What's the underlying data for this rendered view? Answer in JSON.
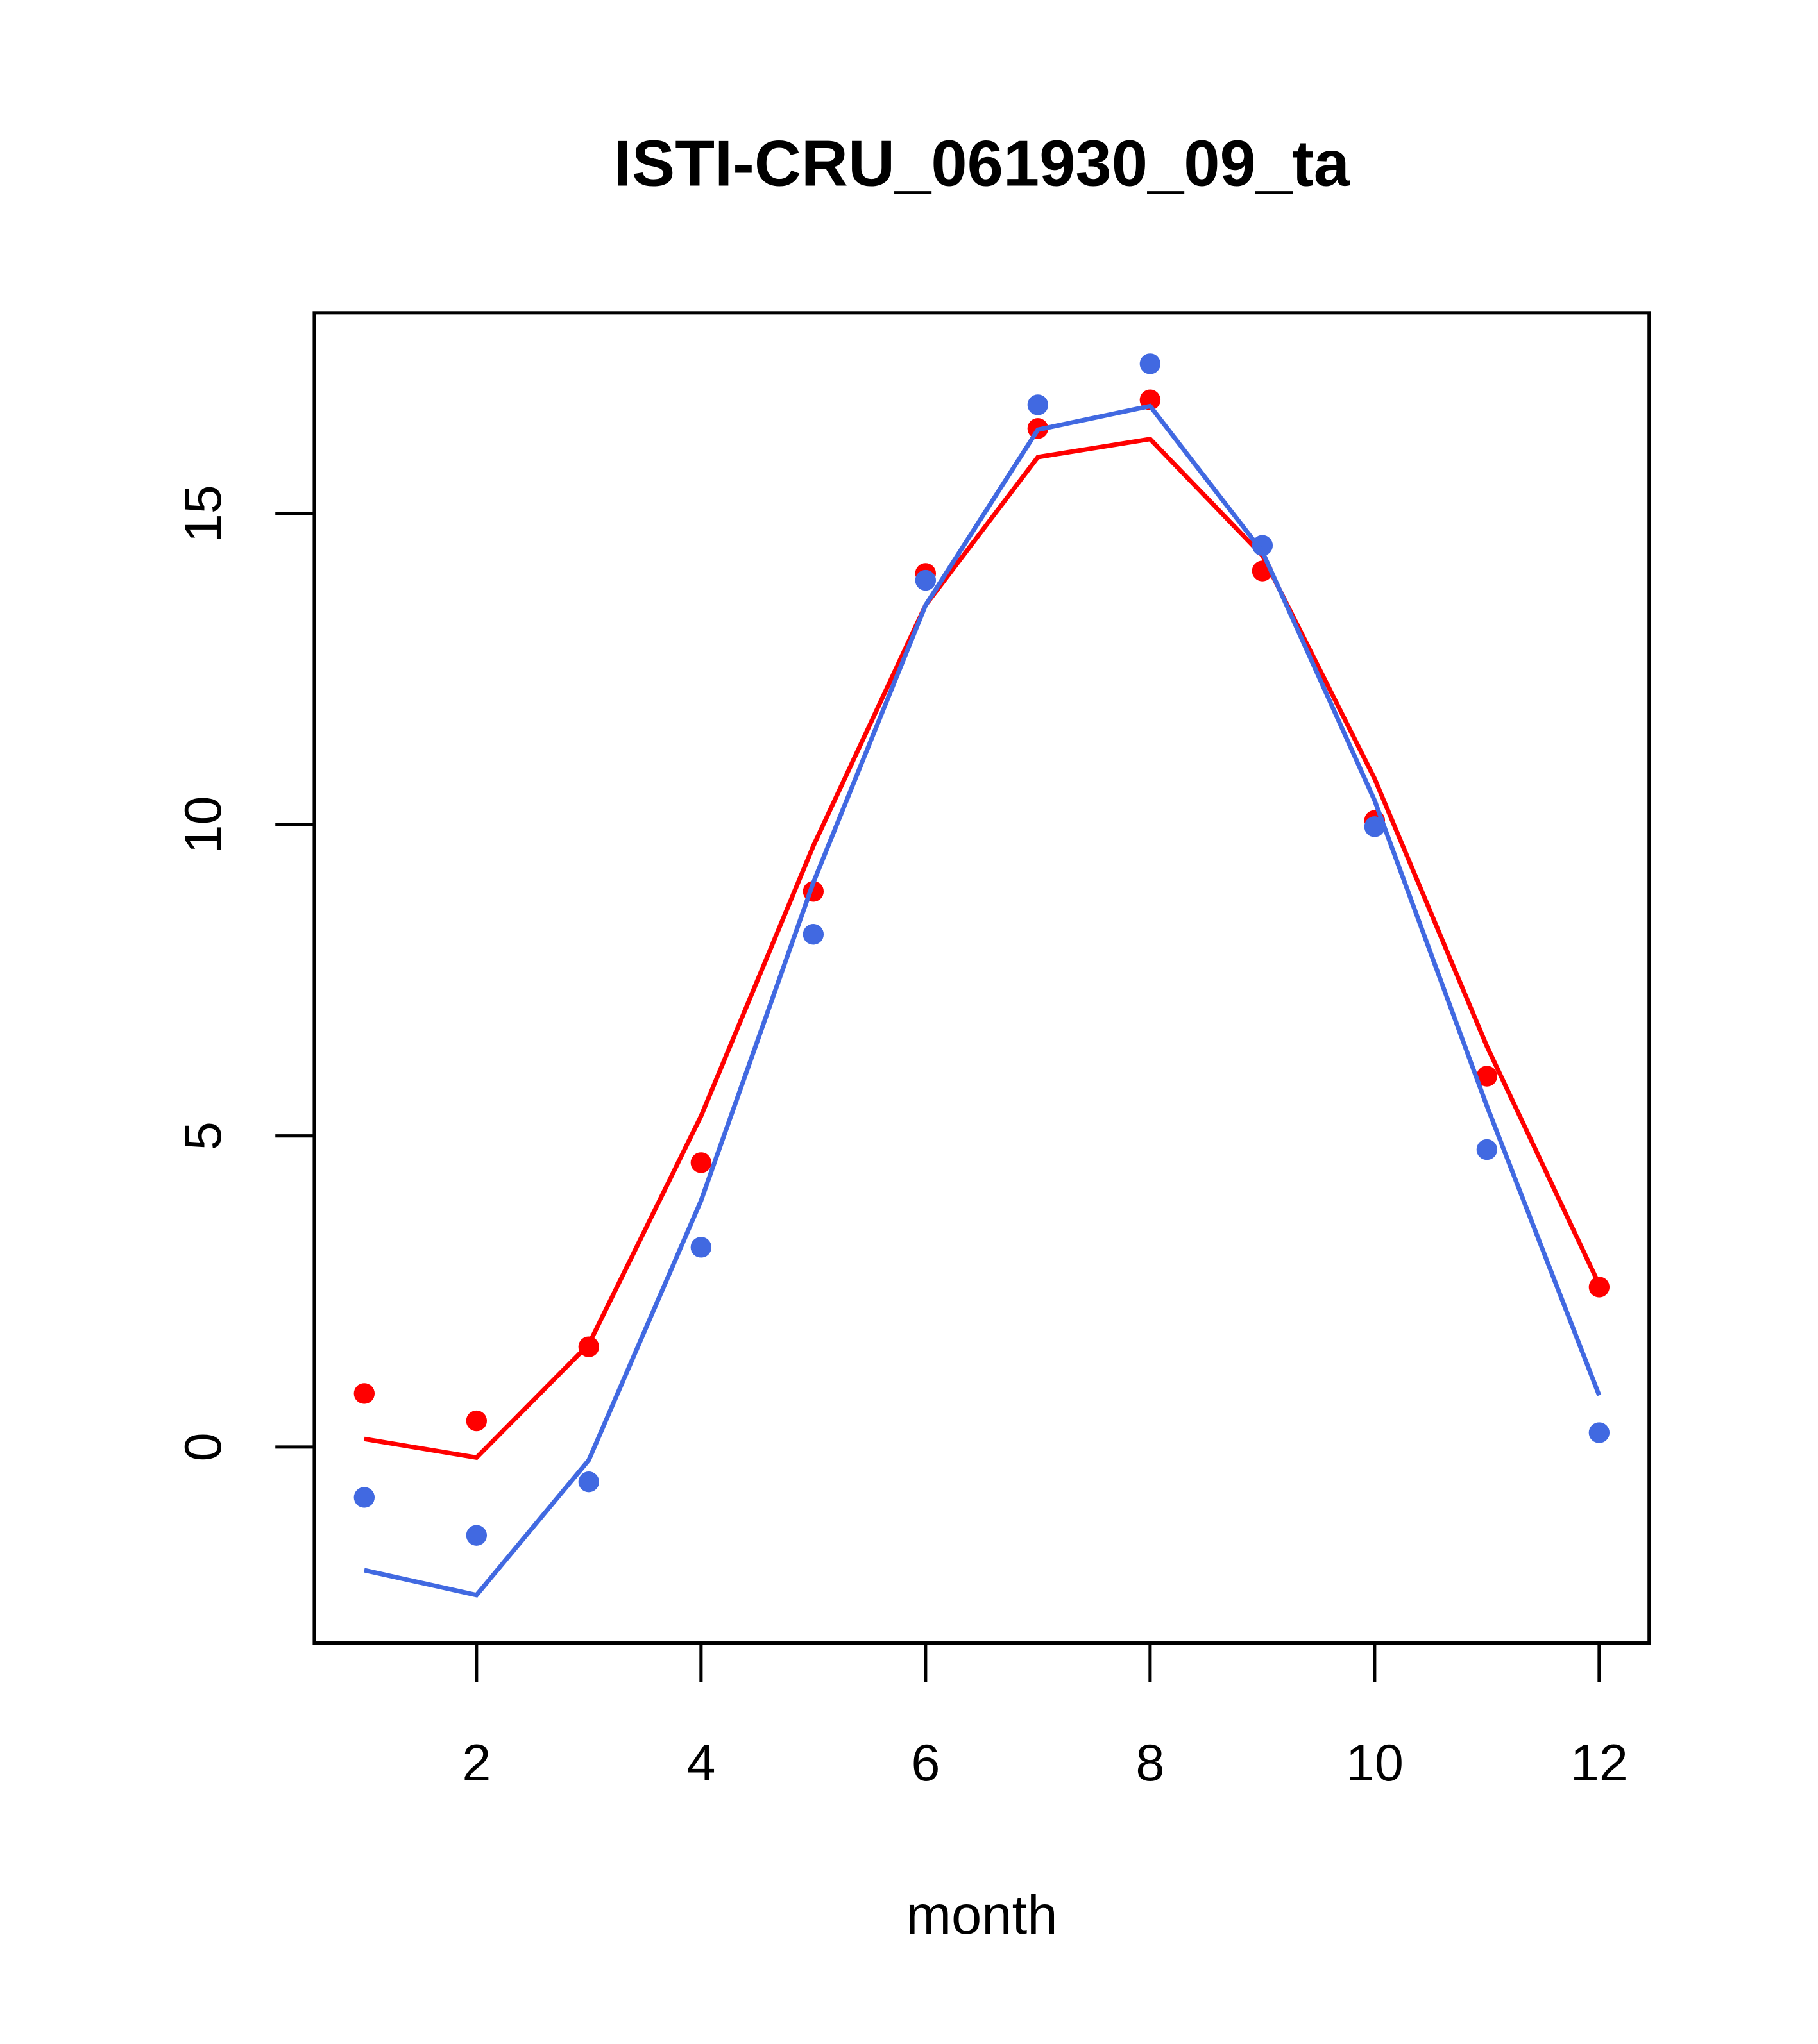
{
  "chart_data": {
    "type": "line",
    "title": "ISTI-CRU_061930_09_ta",
    "xlabel": "month",
    "ylabel": "",
    "xlim": [
      0.555,
      12.445
    ],
    "ylim": [
      -3.15,
      18.23
    ],
    "xticks": [
      2,
      4,
      6,
      8,
      10,
      12
    ],
    "yticks": [
      0,
      5,
      10,
      15
    ],
    "grid": false,
    "x": [
      1,
      2,
      3,
      4,
      5,
      6,
      7,
      8,
      9,
      10,
      11,
      12
    ],
    "series": [
      {
        "name": "red points",
        "kind": "points",
        "color": "#ff0000",
        "values": [
          0.86,
          0.42,
          1.61,
          4.57,
          8.93,
          14.04,
          16.37,
          16.83,
          14.08,
          10.07,
          5.96,
          2.57
        ]
      },
      {
        "name": "red line",
        "kind": "line",
        "color": "#ff0000",
        "values": [
          0.13,
          -0.17,
          1.65,
          5.32,
          9.66,
          13.53,
          15.91,
          16.2,
          14.33,
          10.74,
          6.44,
          2.61
        ]
      },
      {
        "name": "blue points",
        "kind": "points",
        "color": "#4169e1",
        "values": [
          -0.81,
          -1.42,
          -0.56,
          3.21,
          8.24,
          13.93,
          16.75,
          17.41,
          14.49,
          9.97,
          4.78,
          0.23
        ]
      },
      {
        "name": "blue line",
        "kind": "line",
        "color": "#4169e1",
        "values": [
          -1.98,
          -2.38,
          -0.21,
          3.96,
          9.07,
          13.53,
          16.35,
          16.73,
          14.39,
          10.39,
          5.48,
          0.83
        ]
      }
    ]
  }
}
